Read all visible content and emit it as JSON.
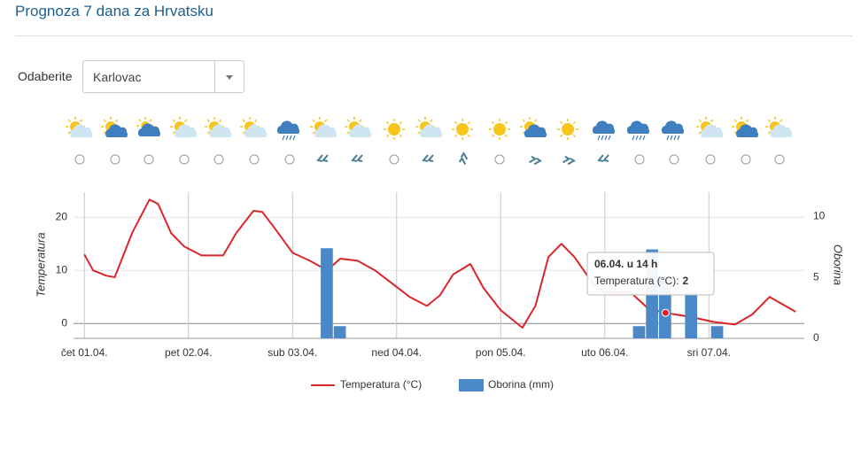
{
  "header": {
    "title": "Prognoza 7 dana za Hrvatsku"
  },
  "selector": {
    "label": "Odaberite",
    "value": "Karlovac"
  },
  "chart_data": {
    "type": "combo",
    "ylabel": "Temperatura",
    "y2label": "Oborina",
    "xlim": [
      -2.5,
      166
    ],
    "ylim": [
      -2.8,
      24.7
    ],
    "y2lim": [
      0,
      12
    ],
    "xticks": [
      {
        "value": 0,
        "label": "čet 01.04."
      },
      {
        "value": 24,
        "label": "pet 02.04."
      },
      {
        "value": 48,
        "label": "sub 03.04."
      },
      {
        "value": 72,
        "label": "ned 04.04."
      },
      {
        "value": 96,
        "label": "pon 05.04."
      },
      {
        "value": 120,
        "label": "uto 06.04."
      },
      {
        "value": 144,
        "label": "sri 07.04."
      }
    ],
    "yticks": [
      0,
      10,
      20
    ],
    "y2ticks": [
      0,
      5,
      10
    ],
    "grid": true,
    "series": [
      {
        "name": "Temperatura (°C)",
        "type": "line",
        "color": "#d9262b",
        "x": [
          0,
          2,
          5,
          7,
          11,
          15,
          17,
          20,
          23,
          27,
          32,
          35,
          39,
          41,
          44,
          48,
          52,
          56,
          59,
          63,
          67,
          71,
          75,
          79,
          82,
          85,
          89,
          92,
          96,
          101,
          104,
          107,
          110,
          113,
          117,
          120,
          126,
          130,
          134,
          140,
          145,
          150,
          154,
          158,
          164
        ],
        "values": [
          13,
          10,
          9,
          8.7,
          17,
          23.3,
          22.5,
          17,
          14.5,
          12.8,
          12.8,
          17,
          21.2,
          21,
          17.8,
          13.3,
          11.8,
          10,
          12.2,
          11.8,
          10,
          7.5,
          5,
          3.3,
          5.3,
          9.2,
          11.2,
          6.7,
          2.5,
          -0.8,
          3.3,
          12.5,
          15,
          12.5,
          7.8,
          5.8,
          5.8,
          2.8,
          2,
          1.2,
          0.3,
          -0.2,
          1.7,
          5,
          2.2
        ]
      },
      {
        "name": "Oborina (mm)",
        "type": "bar",
        "axis": "y2",
        "color": "#4a88c8",
        "x": [
          56,
          59,
          128,
          131,
          134,
          140,
          146
        ],
        "values": [
          7.4,
          1,
          1,
          7.3,
          5,
          3.8,
          1
        ]
      }
    ],
    "tooltip": {
      "title": "06.04. u 14 h",
      "label": "Temperatura (°C):",
      "value": 2
    }
  }
}
